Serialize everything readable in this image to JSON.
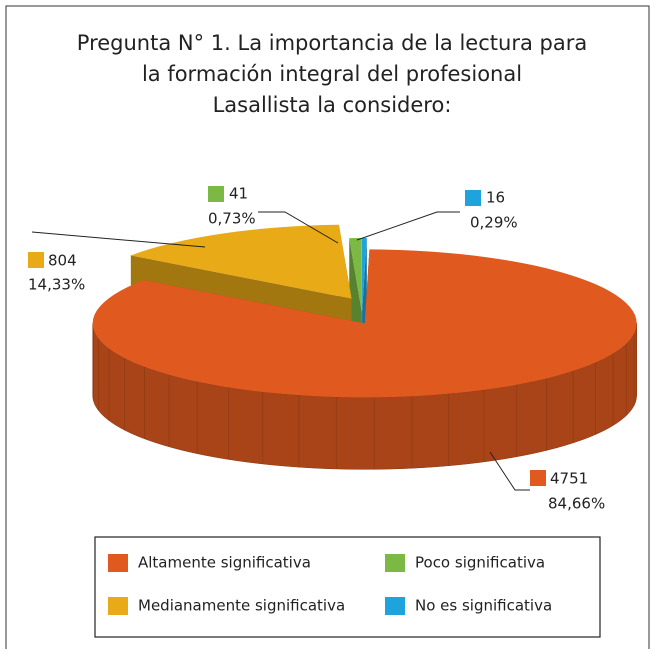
{
  "chart_data": {
    "type": "pie3d",
    "title": [
      "Pregunta N° 1. La importancia de la lectura para",
      "la formación integral del profesional",
      "Lasallista la considero:"
    ],
    "categories": [
      "Altamente significativa",
      "Medianamente significativa",
      "Poco significativa",
      "No es significativa"
    ],
    "values": [
      4751,
      804,
      41,
      16
    ],
    "percentages": [
      84.66,
      14.33,
      0.73,
      0.29
    ],
    "percentage_labels": [
      "84,66%",
      "14,33%",
      "0,73%",
      "0,29%"
    ],
    "colors": [
      "#e05a1f",
      "#e8aa16",
      "#7cb944",
      "#1fa3dd"
    ],
    "legend": "bottom"
  }
}
